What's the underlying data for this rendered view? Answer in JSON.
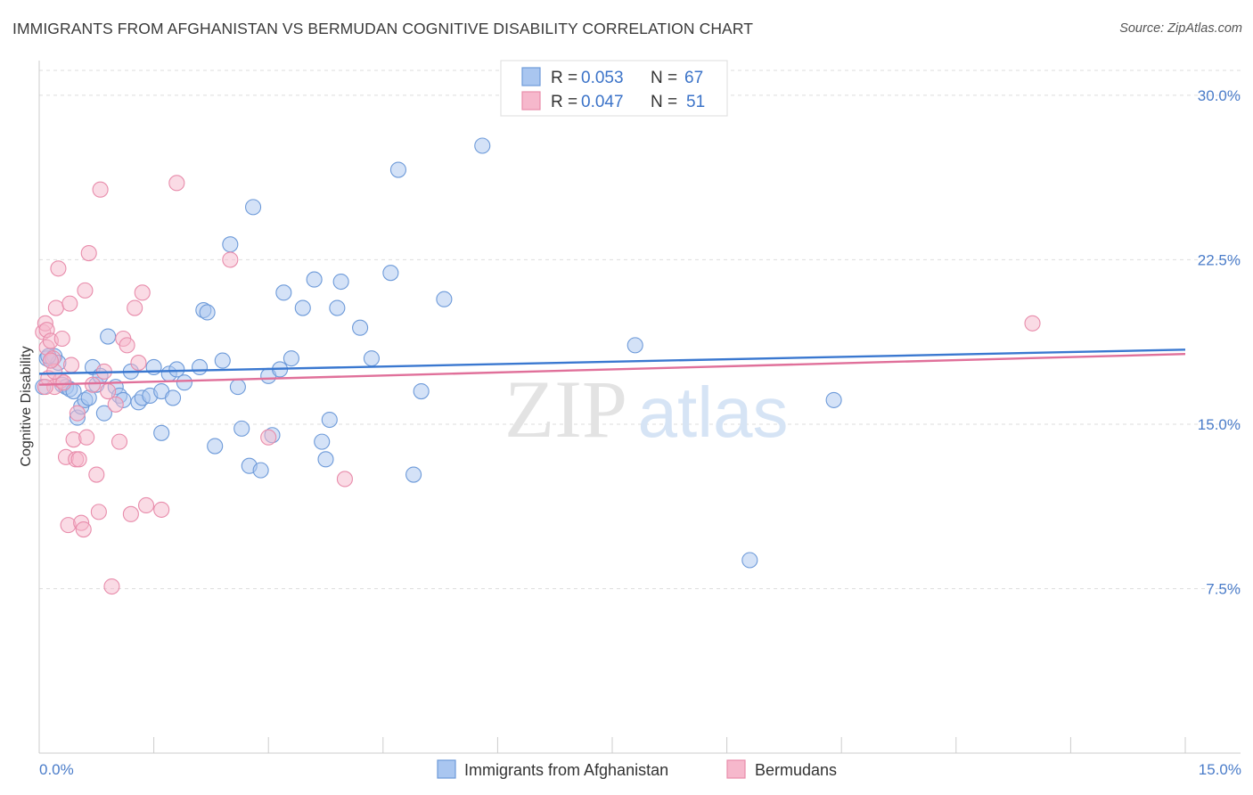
{
  "title": "IMMIGRANTS FROM AFGHANISTAN VS BERMUDAN COGNITIVE DISABILITY CORRELATION CHART",
  "source": "Source: ZipAtlas.com",
  "watermark": {
    "zip": "ZIP",
    "atlas": "atlas"
  },
  "colors": {
    "blue_fill": "#a9c6f0",
    "blue_stroke": "#6d9ad9",
    "blue_line": "#3a78d0",
    "pink_fill": "#f6b8cc",
    "pink_stroke": "#e88cab",
    "pink_line": "#e0709a",
    "grid": "#dddddd",
    "axis_text": "#4a7cc9"
  },
  "legend": {
    "r_label": "R = ",
    "n_label": "N = ",
    "series": [
      {
        "r": "0.053",
        "n": "67"
      },
      {
        "r": "0.047",
        "n": "51"
      }
    ]
  },
  "chart_data": {
    "type": "scatter",
    "title": "IMMIGRANTS FROM AFGHANISTAN VS BERMUDAN COGNITIVE DISABILITY CORRELATION CHART",
    "xlabel": "",
    "ylabel": "Cognitive Disability",
    "xlim": [
      0,
      15
    ],
    "ylim": [
      0,
      31.5
    ],
    "x_tick_labels": [
      "0.0%",
      "15.0%"
    ],
    "y_ticks": [
      7.5,
      15.0,
      22.5,
      30.0
    ],
    "y_tick_labels": [
      "7.5%",
      "15.0%",
      "22.5%",
      "30.0%"
    ],
    "grid": true,
    "legend_position": "top-center",
    "series": [
      {
        "name": "Immigrants from Afghanistan",
        "color": "#a9c6f0",
        "trend": {
          "x": [
            0,
            15
          ],
          "y": [
            17.3,
            18.4
          ]
        },
        "points": [
          [
            0.1,
            18.0
          ],
          [
            0.15,
            17.9
          ],
          [
            0.2,
            18.1
          ],
          [
            0.25,
            17.8
          ],
          [
            0.3,
            16.8
          ],
          [
            0.35,
            16.7
          ],
          [
            0.4,
            16.6
          ],
          [
            0.45,
            16.5
          ],
          [
            0.5,
            15.3
          ],
          [
            0.55,
            15.8
          ],
          [
            0.6,
            16.1
          ],
          [
            0.65,
            16.2
          ],
          [
            0.7,
            17.6
          ],
          [
            0.75,
            16.8
          ],
          [
            0.8,
            17.2
          ],
          [
            0.85,
            15.5
          ],
          [
            0.9,
            19.0
          ],
          [
            1.0,
            16.7
          ],
          [
            1.05,
            16.3
          ],
          [
            1.1,
            16.1
          ],
          [
            1.2,
            17.4
          ],
          [
            1.3,
            16.0
          ],
          [
            1.35,
            16.2
          ],
          [
            1.45,
            16.3
          ],
          [
            1.5,
            17.6
          ],
          [
            1.6,
            16.5
          ],
          [
            1.6,
            14.6
          ],
          [
            1.7,
            17.3
          ],
          [
            1.75,
            16.2
          ],
          [
            1.8,
            17.5
          ],
          [
            1.9,
            16.9
          ],
          [
            2.1,
            17.6
          ],
          [
            2.15,
            20.2
          ],
          [
            2.2,
            20.1
          ],
          [
            2.3,
            14.0
          ],
          [
            2.4,
            17.9
          ],
          [
            2.5,
            23.2
          ],
          [
            2.6,
            16.7
          ],
          [
            2.65,
            14.8
          ],
          [
            2.75,
            13.1
          ],
          [
            2.8,
            24.9
          ],
          [
            2.9,
            12.9
          ],
          [
            3.0,
            17.2
          ],
          [
            3.05,
            14.5
          ],
          [
            3.15,
            17.5
          ],
          [
            3.2,
            21.0
          ],
          [
            3.3,
            18.0
          ],
          [
            3.45,
            20.3
          ],
          [
            3.6,
            21.6
          ],
          [
            3.7,
            14.2
          ],
          [
            3.75,
            13.4
          ],
          [
            3.8,
            15.2
          ],
          [
            3.9,
            20.3
          ],
          [
            3.95,
            21.5
          ],
          [
            4.2,
            19.4
          ],
          [
            4.35,
            18.0
          ],
          [
            4.6,
            21.9
          ],
          [
            4.7,
            26.6
          ],
          [
            4.9,
            12.7
          ],
          [
            5.0,
            16.5
          ],
          [
            5.3,
            20.7
          ],
          [
            5.8,
            27.7
          ],
          [
            7.8,
            18.6
          ],
          [
            9.3,
            8.8
          ],
          [
            10.4,
            16.1
          ],
          [
            0.05,
            16.7
          ],
          [
            0.12,
            18.1
          ]
        ]
      },
      {
        "name": "Bermudans",
        "color": "#f6b8cc",
        "trend": {
          "x": [
            0,
            15
          ],
          "y": [
            16.8,
            18.2
          ]
        },
        "points": [
          [
            0.05,
            19.2
          ],
          [
            0.08,
            19.6
          ],
          [
            0.1,
            19.3
          ],
          [
            0.1,
            18.5
          ],
          [
            0.12,
            17.1
          ],
          [
            0.15,
            18.8
          ],
          [
            0.18,
            18.0
          ],
          [
            0.2,
            16.7
          ],
          [
            0.22,
            20.3
          ],
          [
            0.25,
            22.1
          ],
          [
            0.28,
            17.0
          ],
          [
            0.3,
            18.9
          ],
          [
            0.32,
            16.9
          ],
          [
            0.35,
            13.5
          ],
          [
            0.38,
            10.4
          ],
          [
            0.4,
            20.5
          ],
          [
            0.42,
            17.7
          ],
          [
            0.45,
            14.3
          ],
          [
            0.48,
            13.4
          ],
          [
            0.5,
            15.5
          ],
          [
            0.52,
            13.4
          ],
          [
            0.55,
            10.5
          ],
          [
            0.58,
            10.2
          ],
          [
            0.6,
            21.1
          ],
          [
            0.62,
            14.4
          ],
          [
            0.65,
            22.8
          ],
          [
            0.7,
            16.8
          ],
          [
            0.75,
            12.7
          ],
          [
            0.78,
            11.0
          ],
          [
            0.8,
            25.7
          ],
          [
            0.85,
            17.4
          ],
          [
            0.9,
            16.5
          ],
          [
            0.95,
            7.6
          ],
          [
            1.0,
            15.9
          ],
          [
            1.05,
            14.2
          ],
          [
            1.1,
            18.9
          ],
          [
            1.15,
            18.6
          ],
          [
            1.2,
            10.9
          ],
          [
            1.25,
            20.3
          ],
          [
            1.3,
            17.8
          ],
          [
            1.35,
            21.0
          ],
          [
            1.4,
            11.3
          ],
          [
            1.6,
            11.1
          ],
          [
            1.8,
            26.0
          ],
          [
            2.5,
            22.5
          ],
          [
            3.0,
            14.4
          ],
          [
            4.0,
            12.5
          ],
          [
            13.0,
            19.6
          ],
          [
            0.08,
            16.7
          ],
          [
            0.2,
            17.4
          ],
          [
            0.15,
            17.9
          ]
        ]
      }
    ]
  },
  "bottom_legend": [
    "Immigrants from Afghanistan",
    "Bermudans"
  ]
}
